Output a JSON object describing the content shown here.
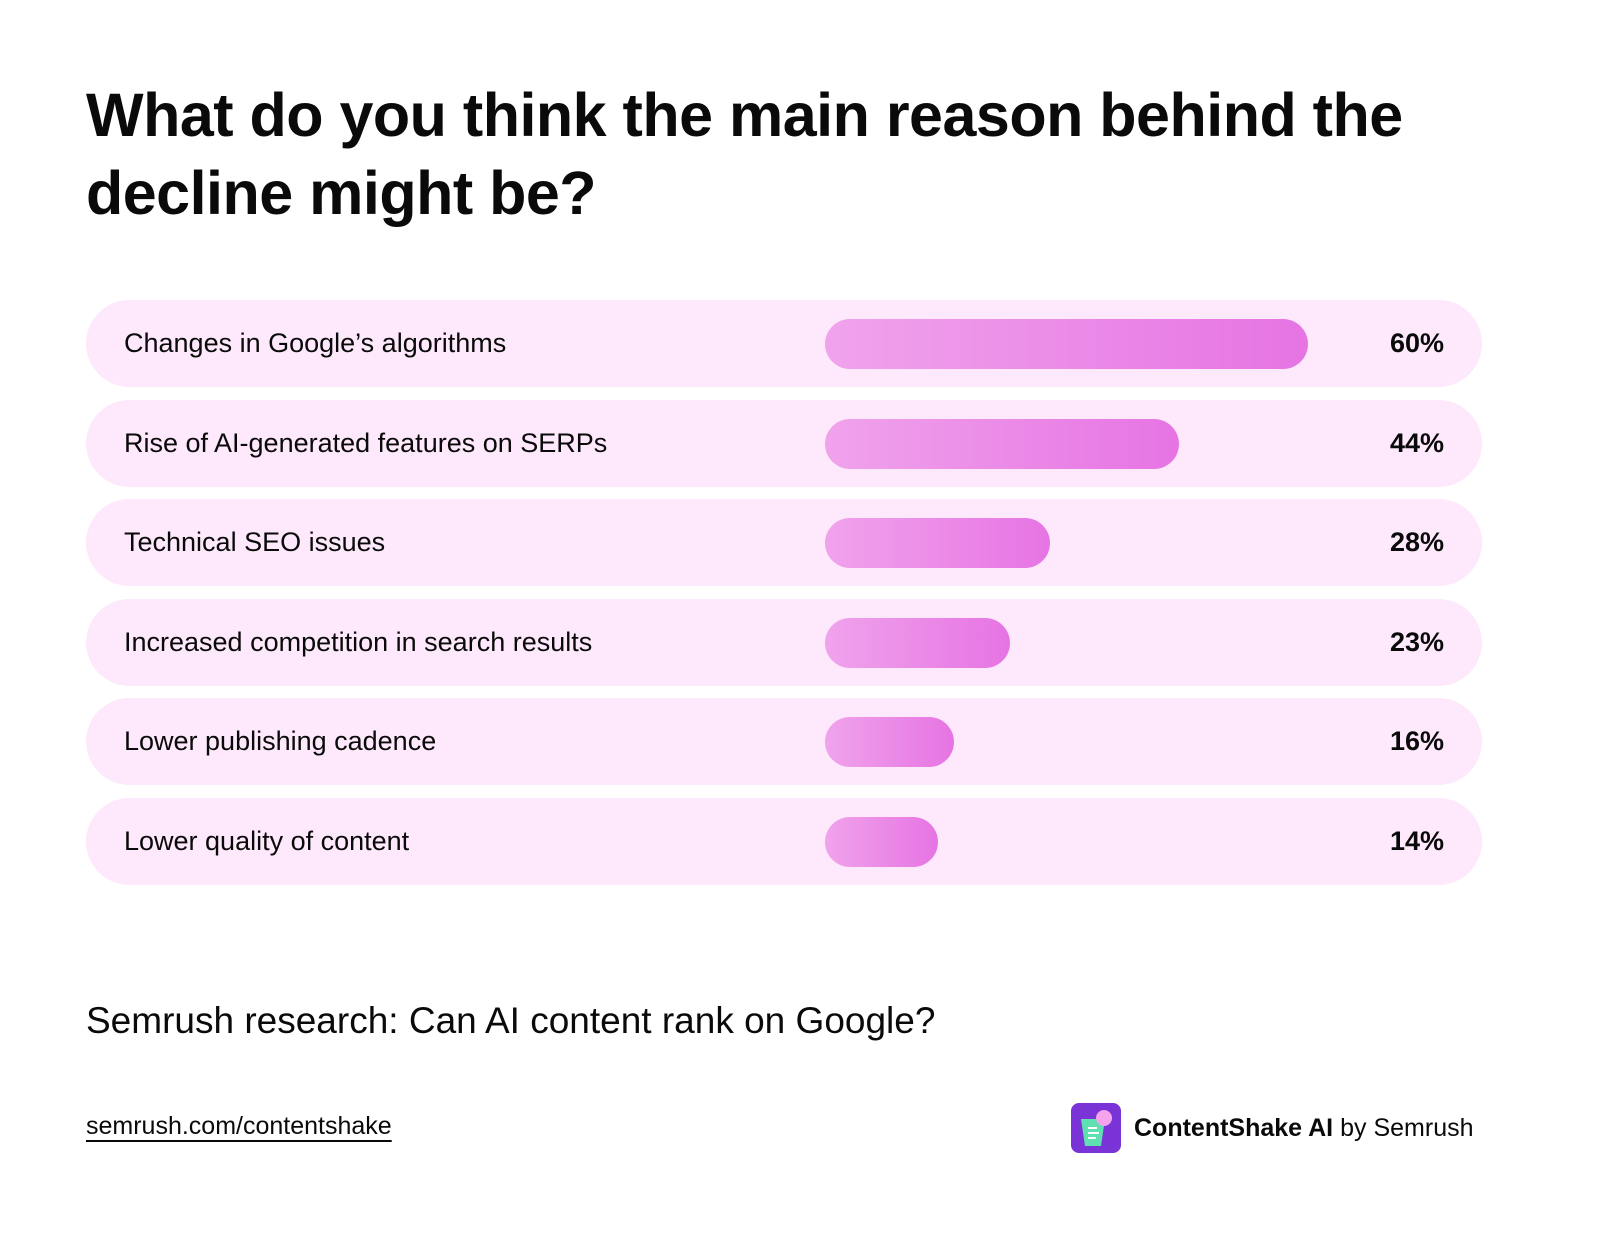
{
  "chart_data": {
    "type": "bar",
    "orientation": "horizontal",
    "title": "What do you think the main reason behind the decline might be?",
    "categories": [
      "Changes in Google’s algorithms",
      "Rise of AI-generated features on SERPs",
      "Technical SEO issues",
      "Increased competition in search results",
      "Lower publishing cadence",
      "Lower quality of content"
    ],
    "values": [
      60,
      44,
      28,
      23,
      16,
      14
    ],
    "value_labels": [
      "60%",
      "44%",
      "28%",
      "23%",
      "16%",
      "14%"
    ],
    "unit": "%",
    "xlim": [
      0,
      100
    ],
    "grid": false,
    "colors": {
      "row_background": "#fde9fb",
      "bar_start": "#f0a3ec",
      "bar_end": "#e674e3"
    }
  },
  "footer": {
    "source": "Semrush research: Can AI content rank on Google?",
    "link": "semrush.com/contentshake",
    "brand_name": "ContentShake AI",
    "brand_by": "by Semrush",
    "logo_icon": "contentshake-logo"
  }
}
